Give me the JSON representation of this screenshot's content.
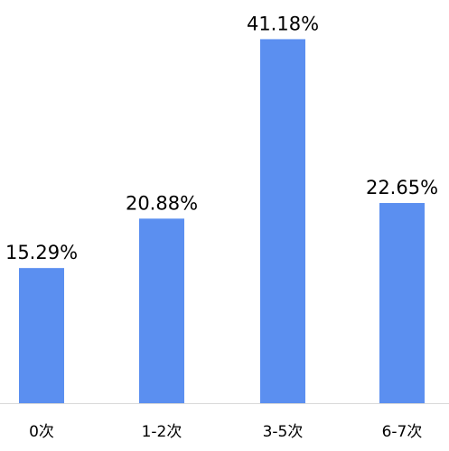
{
  "chart_data": {
    "type": "bar",
    "categories": [
      "0次",
      "1-2次",
      "3-5次",
      "6-7次"
    ],
    "values": [
      15.29,
      20.88,
      41.18,
      22.65
    ],
    "value_labels": [
      "15.29%",
      "20.88%",
      "41.18%",
      "22.65%"
    ],
    "ylim": [
      0,
      45
    ],
    "grid": false,
    "colors": {
      "bar": "#5B8FF0",
      "axis": "#D9D9D9",
      "text": "#000000"
    }
  }
}
